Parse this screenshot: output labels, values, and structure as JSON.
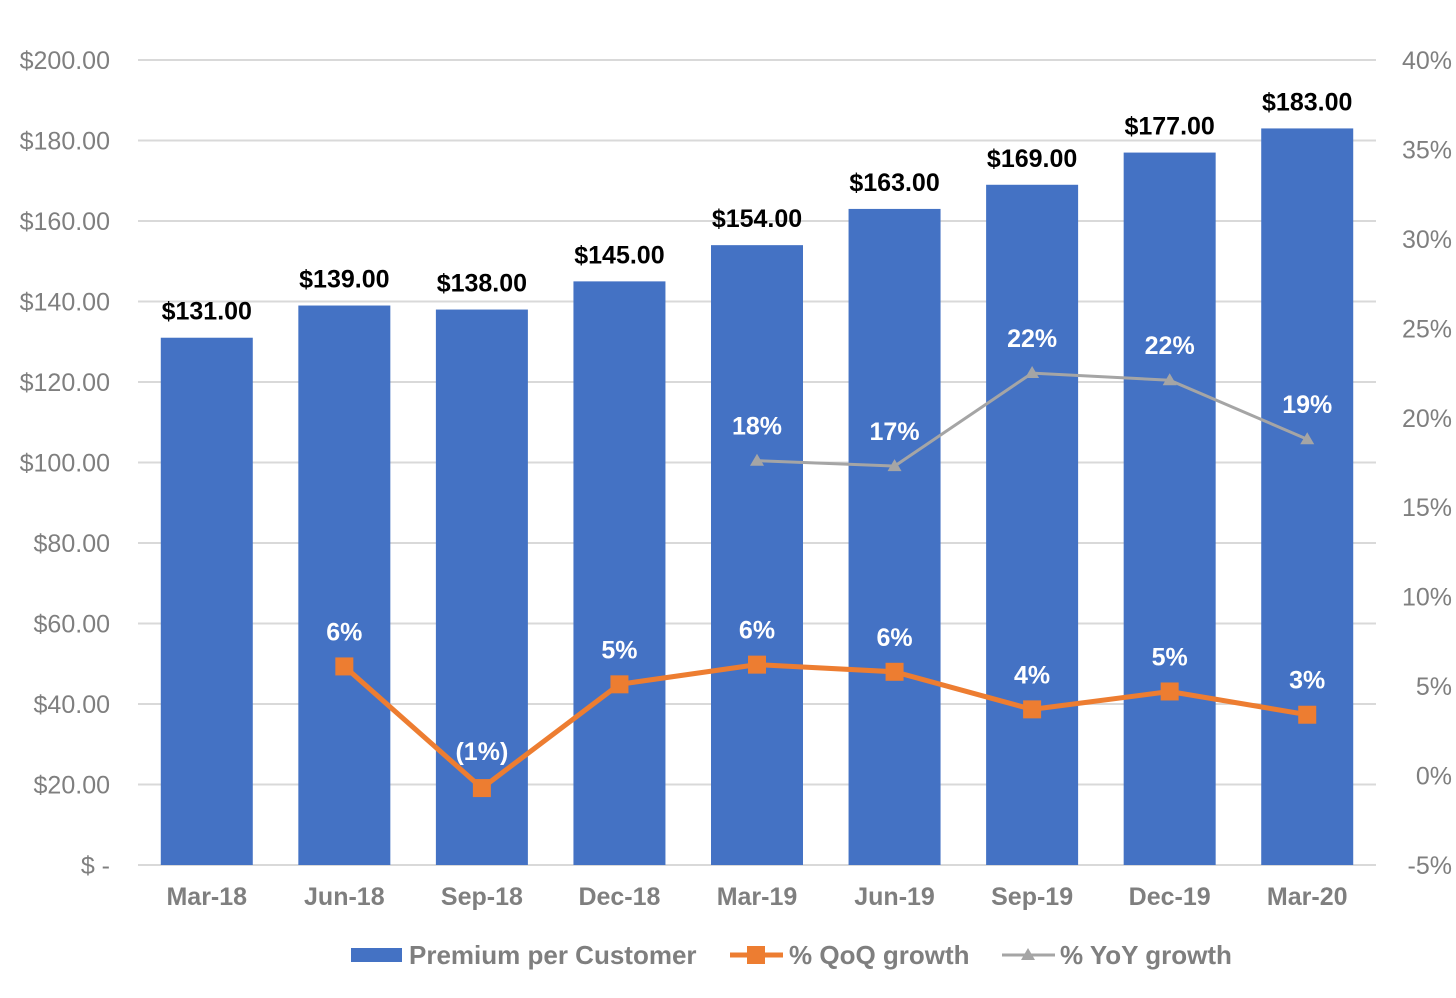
{
  "chart_data": {
    "type": "bar",
    "categories": [
      "Mar-18",
      "Jun-18",
      "Sep-18",
      "Dec-18",
      "Mar-19",
      "Jun-19",
      "Sep-19",
      "Dec-19",
      "Mar-20"
    ],
    "series": [
      {
        "name": "Premium per Customer",
        "chart": "bar",
        "axis": "left",
        "color": "#4472C4",
        "values": [
          131,
          139,
          138,
          145,
          154,
          163,
          169,
          177,
          183
        ],
        "labels": [
          "$131.00",
          "$139.00",
          "$138.00",
          "$145.00",
          "$154.00",
          "$163.00",
          "$169.00",
          "$177.00",
          "$183.00"
        ]
      },
      {
        "name": "% QoQ growth",
        "chart": "line",
        "marker": "square",
        "axis": "right",
        "color": "#ED7D31",
        "values": [
          null,
          6.1,
          -0.7,
          5.1,
          6.2,
          5.8,
          3.7,
          4.7,
          3.4
        ],
        "labels": [
          "",
          "6%",
          "(1%)",
          "5%",
          "6%",
          "6%",
          "4%",
          "5%",
          "3%"
        ]
      },
      {
        "name": "% YoY growth",
        "chart": "line",
        "marker": "triangle",
        "axis": "right",
        "color": "#A5A5A5",
        "values": [
          null,
          null,
          null,
          null,
          17.6,
          17.3,
          22.5,
          22.1,
          18.8
        ],
        "labels": [
          "",
          "",
          "",
          "",
          "18%",
          "17%",
          "22%",
          "22%",
          "19%"
        ]
      }
    ],
    "y_left": {
      "ylim": [
        0,
        200
      ],
      "ticks": [
        0,
        20,
        40,
        60,
        80,
        100,
        120,
        140,
        160,
        180,
        200
      ],
      "tick_labels": [
        "$ -",
        "$20.00",
        "$40.00",
        "$60.00",
        "$80.00",
        "$100.00",
        "$120.00",
        "$140.00",
        "$160.00",
        "$180.00",
        "$200.00"
      ]
    },
    "y_right": {
      "ylim": [
        -5,
        40
      ],
      "ticks": [
        -5,
        0,
        5,
        10,
        15,
        20,
        25,
        30,
        35,
        40
      ],
      "tick_labels": [
        "-5%",
        "0%",
        "5%",
        "10%",
        "15%",
        "20%",
        "25%",
        "30%",
        "35%",
        "40%"
      ]
    },
    "grid": true,
    "legend": "bottom",
    "gridline_color": "#D9D9D9",
    "text_color": "#7F7F7F"
  }
}
